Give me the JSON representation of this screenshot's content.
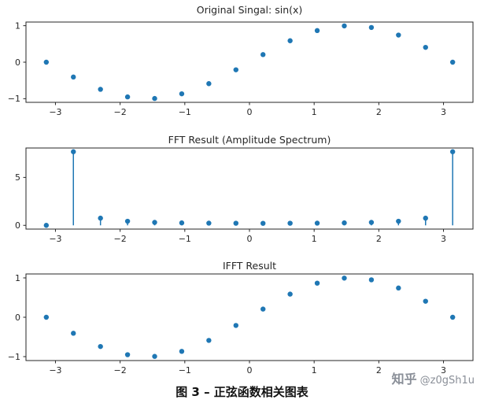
{
  "figure": {
    "caption": "图 3 – 正弦函数相关图表",
    "watermark": {
      "brand": "知乎",
      "handle": "@z0gSh1u"
    }
  },
  "colors": {
    "series": "#1f77b4",
    "axis": "#262626",
    "watermark": "#8a8f98"
  },
  "chart_data": [
    {
      "type": "scatter",
      "title": "Original Singal: sin(x)",
      "xlabel": "",
      "ylabel": "",
      "x": [
        -3.1416,
        -2.7227,
        -2.3038,
        -1.885,
        -1.4661,
        -1.0472,
        -0.6283,
        -0.2094,
        0.2094,
        0.6283,
        1.0472,
        1.4661,
        1.885,
        2.3038,
        2.7227,
        3.1416
      ],
      "y": [
        0,
        -0.4067,
        -0.7431,
        -0.9511,
        -0.9945,
        -0.866,
        -0.5878,
        -0.2079,
        0.2079,
        0.5878,
        0.866,
        0.9945,
        0.9511,
        0.7431,
        0.4067,
        0
      ],
      "xlim": [
        -3.4558,
        3.4558
      ],
      "ylim": [
        -1.1,
        1.1
      ],
      "xticks": [
        -3,
        -2,
        -1,
        0,
        1,
        2,
        3
      ],
      "yticks": [
        -1,
        0,
        1
      ],
      "grid": false,
      "legend": "none"
    },
    {
      "type": "stem",
      "title": "FFT Result (Amplitude Spectrum)",
      "xlabel": "",
      "ylabel": "",
      "x": [
        -3.1416,
        -2.7227,
        -2.3038,
        -1.885,
        -1.4661,
        -1.0472,
        -0.6283,
        -0.2094,
        0.2094,
        0.6283,
        1.0472,
        1.4661,
        1.885,
        2.3038,
        2.7227,
        3.1416
      ],
      "y": [
        0,
        7.68,
        0.75,
        0.43,
        0.31,
        0.26,
        0.23,
        0.22,
        0.21,
        0.22,
        0.23,
        0.26,
        0.31,
        0.43,
        0.75,
        7.68
      ],
      "xlim": [
        -3.4558,
        3.4558
      ],
      "ylim": [
        -0.39,
        8.07
      ],
      "xticks": [
        -3,
        -2,
        -1,
        0,
        1,
        2,
        3
      ],
      "yticks": [
        0,
        5
      ],
      "grid": false,
      "legend": "none"
    },
    {
      "type": "scatter",
      "title": "IFFT Result",
      "xlabel": "",
      "ylabel": "",
      "x": [
        -3.1416,
        -2.7227,
        -2.3038,
        -1.885,
        -1.4661,
        -1.0472,
        -0.6283,
        -0.2094,
        0.2094,
        0.6283,
        1.0472,
        1.4661,
        1.885,
        2.3038,
        2.7227,
        3.1416
      ],
      "y": [
        0,
        -0.4067,
        -0.7431,
        -0.9511,
        -0.9945,
        -0.866,
        -0.5878,
        -0.2079,
        0.2079,
        0.5878,
        0.866,
        0.9945,
        0.9511,
        0.7431,
        0.4067,
        0
      ],
      "xlim": [
        -3.4558,
        3.4558
      ],
      "ylim": [
        -1.1,
        1.1
      ],
      "xticks": [
        -3,
        -2,
        -1,
        0,
        1,
        2,
        3
      ],
      "yticks": [
        -1,
        0,
        1
      ],
      "grid": false,
      "legend": "none"
    }
  ]
}
